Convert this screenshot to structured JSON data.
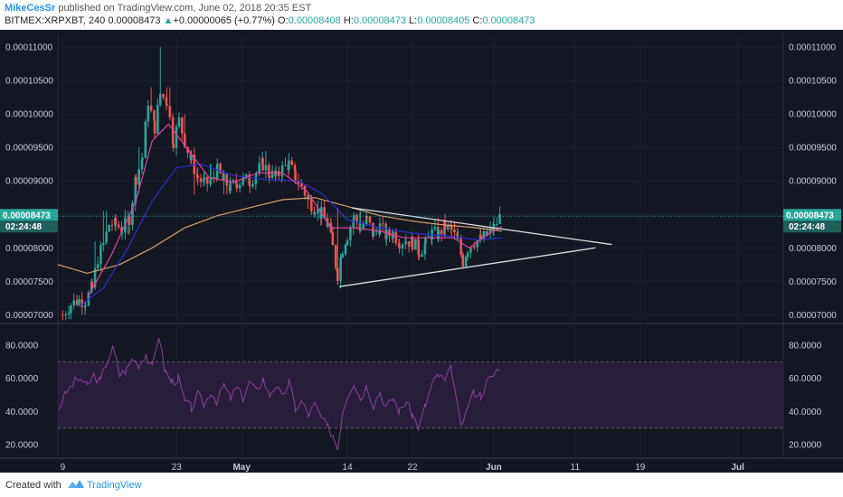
{
  "header": {
    "author": "MikeCesSr",
    "published": " published on TradingView.com, June 02, 2018 20:35 EST",
    "symbol": "BITMEX:XRPXBT, 240",
    "last": "0.00008473",
    "change": "+0.00000065 (+0.77%)",
    "o_label": "O:",
    "o_value": "0.00008408",
    "h_label": "H:",
    "h_value": "0.00008473",
    "l_label": "L:",
    "l_value": "0.00008405",
    "c_label": "C:",
    "c_value": "0.00008473"
  },
  "footer": {
    "created_with": "Created with",
    "brand": "TradingView"
  },
  "colors": {
    "bg": "#131722",
    "grid": "#1e2230",
    "up": "#26a69a",
    "down": "#ef5350",
    "ma_orange": "#d9a066",
    "ma_blue": "#2b2fd9",
    "ma_pink": "#e040a0",
    "trendline": "#dddddd",
    "rsi_line": "#8e3f9e",
    "rsi_band": "#2a1f3f",
    "label_green": "#26a69a"
  },
  "chart_data": {
    "type": "candlestick",
    "price_axis_ticks": [
      "0.00011000",
      "0.00010500",
      "0.00010000",
      "0.00009500",
      "0.00009000",
      "0.00008500",
      "0.00008000",
      "0.00007500",
      "0.00007000"
    ],
    "price_tick_values": [
      0.00011,
      0.000105,
      0.0001,
      9.5e-05,
      9e-05,
      8.5e-05,
      8e-05,
      7.5e-05,
      7e-05
    ],
    "ylim": [
      6.91e-05,
      0.0001115
    ],
    "last_price_label": "0.00008473",
    "countdown_label": "02:24:48",
    "time_axis_labels": [
      "9",
      "23",
      "May",
      "14",
      "22",
      "Jun",
      "11",
      "19",
      "Jul"
    ],
    "time_axis_days": [
      9,
      23,
      31,
      44,
      52,
      62,
      72,
      80,
      92
    ],
    "day_range": [
      8.4,
      97.6
    ],
    "close_series": [
      [
        9.0,
        7e-05
      ],
      [
        10.0,
        7.16e-05
      ],
      [
        11.0,
        7.22e-05
      ],
      [
        11.8,
        7.21e-05
      ],
      [
        12.6,
        7.4e-05
      ],
      [
        13.3,
        7.85e-05
      ],
      [
        14.0,
        8.05e-05
      ],
      [
        14.7,
        8.35e-05
      ],
      [
        15.5,
        8.35e-05
      ],
      [
        16.3,
        8.28e-05
      ],
      [
        17.2,
        8.45e-05
      ],
      [
        18.0,
        9.05e-05
      ],
      [
        18.8,
        9.35e-05
      ],
      [
        19.5,
        0.000102
      ],
      [
        20.3,
        9.8e-05
      ],
      [
        21.0,
        0.000103
      ],
      [
        21.8,
        0.000102
      ],
      [
        22.6,
        9.6e-05
      ],
      [
        23.3,
        9.9e-05
      ],
      [
        24.0,
        9.6e-05
      ],
      [
        24.8,
        9.3e-05
      ],
      [
        25.6,
        9.05e-05
      ],
      [
        26.4,
        8.95e-05
      ],
      [
        27.2,
        9e-05
      ],
      [
        28.0,
        9.15e-05
      ],
      [
        28.8,
        9e-05
      ],
      [
        29.6,
        8.9e-05
      ],
      [
        30.4,
        8.98e-05
      ],
      [
        31.2,
        9.02e-05
      ],
      [
        32.0,
        9e-05
      ],
      [
        32.8,
        9.12e-05
      ],
      [
        33.6,
        9.25e-05
      ],
      [
        34.4,
        9.12e-05
      ],
      [
        35.2,
        9.05e-05
      ],
      [
        36.0,
        9.18e-05
      ],
      [
        36.8,
        9.25e-05
      ],
      [
        37.6,
        9.05e-05
      ],
      [
        38.4,
        8.93e-05
      ],
      [
        39.2,
        8.7e-05
      ],
      [
        40.0,
        8.6e-05
      ],
      [
        40.8,
        8.5e-05
      ],
      [
        41.6,
        8.35e-05
      ],
      [
        42.2,
        8e-05
      ],
      [
        42.8,
        7.6e-05
      ],
      [
        43.4,
        8e-05
      ],
      [
        44.0,
        8.2e-05
      ],
      [
        44.8,
        8.45e-05
      ],
      [
        45.6,
        8.3e-05
      ],
      [
        46.4,
        8.42e-05
      ],
      [
        47.2,
        8.2e-05
      ],
      [
        48.0,
        8.32e-05
      ],
      [
        48.8,
        8.18e-05
      ],
      [
        49.6,
        8.22e-05
      ],
      [
        50.4,
        8.1e-05
      ],
      [
        51.2,
        8.12e-05
      ],
      [
        52.0,
        8.08e-05
      ],
      [
        52.8,
        7.95e-05
      ],
      [
        53.6,
        8.05e-05
      ],
      [
        54.4,
        8.22e-05
      ],
      [
        55.2,
        8.2e-05
      ],
      [
        56.0,
        8.32e-05
      ],
      [
        56.8,
        8.26e-05
      ],
      [
        57.6,
        8.08e-05
      ],
      [
        58.2,
        7.8e-05
      ],
      [
        58.8,
        8e-05
      ],
      [
        59.6,
        8.1e-05
      ],
      [
        60.4,
        8.12e-05
      ],
      [
        61.2,
        8.2e-05
      ],
      [
        62.0,
        8.3e-05
      ],
      [
        62.8,
        8.47e-05
      ]
    ],
    "range_highs": [
      [
        10.5,
        7.32e-05
      ],
      [
        13.0,
        8.1e-05
      ],
      [
        14.2,
        8.55e-05
      ],
      [
        18.5,
        9.5e-05
      ],
      [
        19.8,
        0.000104
      ],
      [
        21.0,
        0.00011
      ],
      [
        22.0,
        0.000104
      ],
      [
        24.0,
        0.0001
      ],
      [
        27.0,
        9.25e-05
      ],
      [
        34.0,
        9.45e-05
      ],
      [
        36.5,
        9.35e-05
      ],
      [
        42.8,
        8.6e-05
      ],
      [
        45.5,
        8.55e-05
      ],
      [
        55.0,
        8.45e-05
      ],
      [
        62.6,
        8.48e-05
      ]
    ],
    "range_lows": [
      [
        9.2,
        6.92e-05
      ],
      [
        11.0,
        7.15e-05
      ],
      [
        13.5,
        7.65e-05
      ],
      [
        17.0,
        8.2e-05
      ],
      [
        25.3,
        8.8e-05
      ],
      [
        29.0,
        8.8e-05
      ],
      [
        39.0,
        8.58e-05
      ],
      [
        43.0,
        7.42e-05
      ],
      [
        52.6,
        7.88e-05
      ],
      [
        58.2,
        7.7e-05
      ],
      [
        60.0,
        8.02e-05
      ]
    ],
    "ma_orange": [
      [
        8.4,
        7.75e-05
      ],
      [
        12.0,
        7.62e-05
      ],
      [
        16.0,
        7.75e-05
      ],
      [
        20.0,
        8e-05
      ],
      [
        24.0,
        8.3e-05
      ],
      [
        28.0,
        8.48e-05
      ],
      [
        32.0,
        8.6e-05
      ],
      [
        36.0,
        8.72e-05
      ],
      [
        40.0,
        8.75e-05
      ],
      [
        44.0,
        8.62e-05
      ],
      [
        48.0,
        8.48e-05
      ],
      [
        52.0,
        8.4e-05
      ],
      [
        56.0,
        8.34e-05
      ],
      [
        60.0,
        8.3e-05
      ],
      [
        63.0,
        8.25e-05
      ]
    ],
    "ma_blue": [
      [
        11.0,
        7.12e-05
      ],
      [
        14.0,
        7.4e-05
      ],
      [
        17.0,
        8e-05
      ],
      [
        20.0,
        8.7e-05
      ],
      [
        23.0,
        9.2e-05
      ],
      [
        26.0,
        9.25e-05
      ],
      [
        30.0,
        9.08e-05
      ],
      [
        34.0,
        9.02e-05
      ],
      [
        38.0,
        9e-05
      ],
      [
        41.0,
        8.8e-05
      ],
      [
        44.0,
        8.42e-05
      ],
      [
        48.0,
        8.3e-05
      ],
      [
        52.0,
        8.22e-05
      ],
      [
        56.0,
        8.18e-05
      ],
      [
        60.0,
        8.12e-05
      ],
      [
        63.0,
        8.15e-05
      ]
    ],
    "ma_pink": [
      [
        12.0,
        7.25e-05
      ],
      [
        15.0,
        7.9e-05
      ],
      [
        18.0,
        8.7e-05
      ],
      [
        20.0,
        9.6e-05
      ],
      [
        22.0,
        9.85e-05
      ],
      [
        24.5,
        9.45e-05
      ],
      [
        27.0,
        9.05e-05
      ],
      [
        30.0,
        8.98e-05
      ],
      [
        33.0,
        9.12e-05
      ],
      [
        36.0,
        9.12e-05
      ],
      [
        39.0,
        8.85e-05
      ],
      [
        42.0,
        8.3e-05
      ],
      [
        45.0,
        8.3e-05
      ],
      [
        48.0,
        8.25e-05
      ],
      [
        51.0,
        8.15e-05
      ],
      [
        54.0,
        8.15e-05
      ],
      [
        57.0,
        8.15e-05
      ],
      [
        59.0,
        8e-05
      ],
      [
        61.0,
        8.18e-05
      ],
      [
        63.0,
        8.32e-05
      ]
    ],
    "trendlines": [
      {
        "from": [
          43.0,
          7.42e-05
        ],
        "to": [
          74.5,
          8e-05
        ]
      },
      {
        "from": [
          44.5,
          8.6e-05
        ],
        "to": [
          76.5,
          8.05e-05
        ]
      }
    ],
    "rsi": {
      "ticks": [
        "80.0000",
        "60.0000",
        "40.0000",
        "20.0000"
      ],
      "tick_values": [
        80,
        60,
        40,
        20
      ],
      "ylim": [
        13,
        92
      ],
      "band": [
        30,
        70
      ],
      "series": [
        [
          8.5,
          42
        ],
        [
          9.5,
          52
        ],
        [
          10.5,
          58
        ],
        [
          11.2,
          60
        ],
        [
          12.0,
          55
        ],
        [
          12.8,
          62
        ],
        [
          13.6,
          58
        ],
        [
          14.4,
          70
        ],
        [
          15.2,
          78
        ],
        [
          16.0,
          62
        ],
        [
          16.8,
          65
        ],
        [
          17.6,
          72
        ],
        [
          18.4,
          68
        ],
        [
          19.2,
          75
        ],
        [
          20.0,
          66
        ],
        [
          20.8,
          86
        ],
        [
          21.6,
          64
        ],
        [
          22.4,
          58
        ],
        [
          23.2,
          60
        ],
        [
          24.0,
          46
        ],
        [
          24.8,
          42
        ],
        [
          25.6,
          50
        ],
        [
          26.4,
          44
        ],
        [
          27.2,
          52
        ],
        [
          28.0,
          46
        ],
        [
          28.8,
          56
        ],
        [
          29.6,
          48
        ],
        [
          30.4,
          54
        ],
        [
          31.2,
          48
        ],
        [
          32.0,
          58
        ],
        [
          32.8,
          52
        ],
        [
          33.6,
          60
        ],
        [
          34.4,
          50
        ],
        [
          35.2,
          56
        ],
        [
          36.0,
          48
        ],
        [
          36.8,
          58
        ],
        [
          37.6,
          42
        ],
        [
          38.4,
          46
        ],
        [
          39.2,
          38
        ],
        [
          40.0,
          44
        ],
        [
          40.8,
          36
        ],
        [
          41.6,
          30
        ],
        [
          42.2,
          26
        ],
        [
          42.8,
          18
        ],
        [
          43.4,
          40
        ],
        [
          44.0,
          50
        ],
        [
          44.8,
          58
        ],
        [
          45.6,
          48
        ],
        [
          46.4,
          56
        ],
        [
          47.2,
          44
        ],
        [
          48.0,
          52
        ],
        [
          48.8,
          42
        ],
        [
          49.6,
          48
        ],
        [
          50.4,
          40
        ],
        [
          51.2,
          46
        ],
        [
          52.0,
          38
        ],
        [
          52.8,
          30
        ],
        [
          53.6,
          44
        ],
        [
          54.4,
          56
        ],
        [
          55.2,
          62
        ],
        [
          56.0,
          58
        ],
        [
          56.8,
          66
        ],
        [
          57.6,
          40
        ],
        [
          58.2,
          30
        ],
        [
          58.8,
          44
        ],
        [
          59.6,
          52
        ],
        [
          60.4,
          50
        ],
        [
          61.2,
          58
        ],
        [
          62.0,
          62
        ],
        [
          62.8,
          68
        ]
      ]
    }
  }
}
